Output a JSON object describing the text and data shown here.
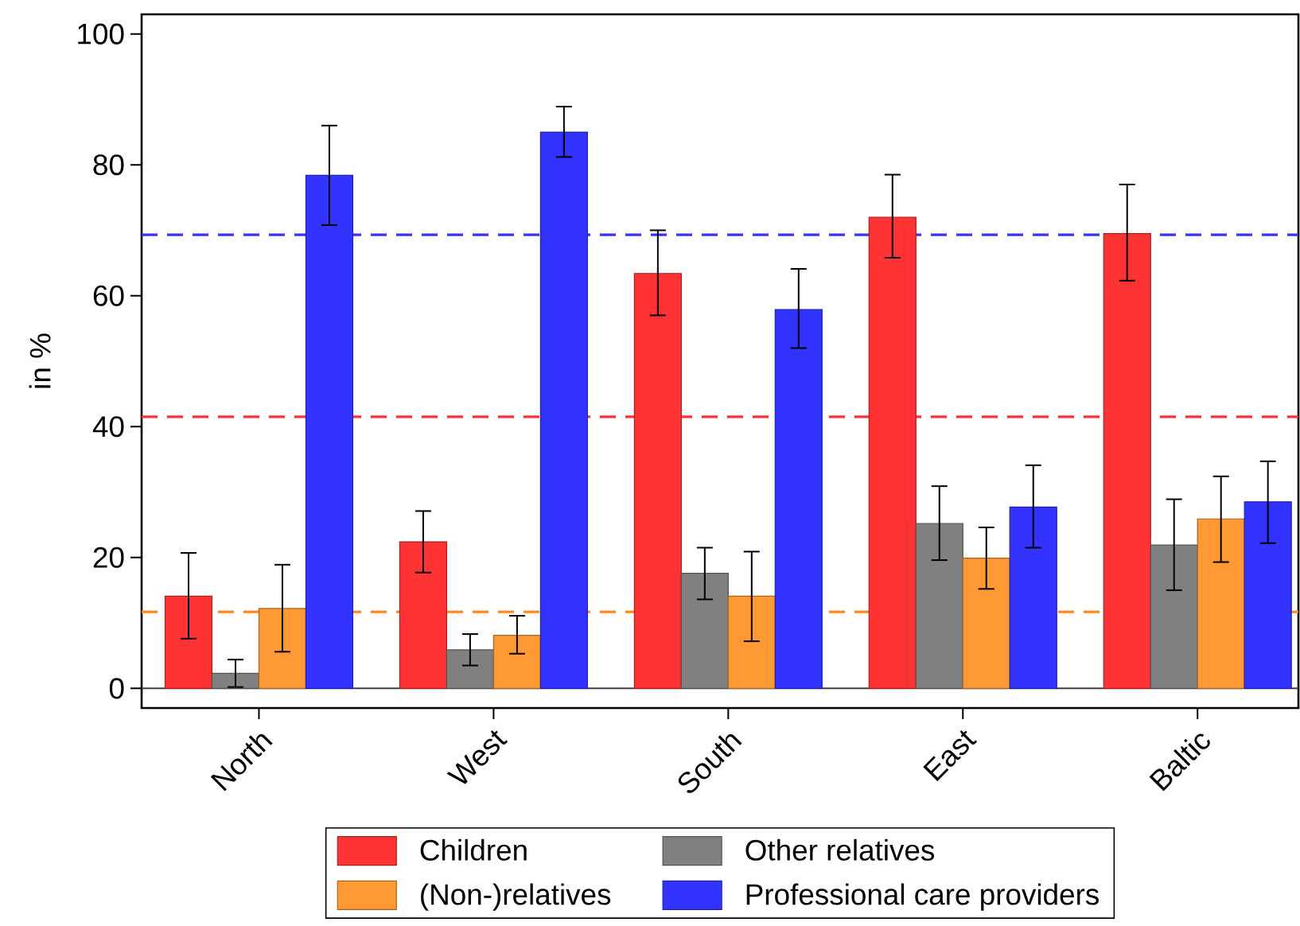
{
  "chart_data": {
    "type": "bar",
    "ylabel": "in %",
    "categories": [
      "North",
      "West",
      "South",
      "East",
      "Baltic"
    ],
    "series": [
      {
        "name": "Children",
        "color": "#ff3333",
        "values": [
          14.1,
          22.4,
          63.4,
          72.0,
          69.5
        ],
        "errors": [
          [
            7.6,
            20.7
          ],
          [
            17.7,
            27.1
          ],
          [
            57.0,
            70.0
          ],
          [
            65.8,
            78.5
          ],
          [
            62.3,
            77.0
          ]
        ]
      },
      {
        "name": "Other relatives",
        "color": "#808080",
        "values": [
          2.3,
          5.9,
          17.6,
          25.2,
          21.9
        ],
        "errors": [
          [
            0.2,
            4.4
          ],
          [
            3.5,
            8.3
          ],
          [
            13.6,
            21.5
          ],
          [
            19.6,
            30.9
          ],
          [
            15.0,
            28.9
          ]
        ]
      },
      {
        "name": "(Non-)relatives",
        "color": "#ff9933",
        "values": [
          12.2,
          8.1,
          14.1,
          19.9,
          25.9
        ],
        "errors": [
          [
            5.6,
            18.9
          ],
          [
            5.3,
            11.1
          ],
          [
            7.2,
            20.9
          ],
          [
            15.2,
            24.6
          ],
          [
            19.3,
            32.4
          ]
        ]
      },
      {
        "name": "Professional care providers",
        "color": "#3333ff",
        "values": [
          78.4,
          85.0,
          57.9,
          27.7,
          28.5
        ],
        "errors": [
          [
            70.8,
            86.0
          ],
          [
            81.2,
            88.9
          ],
          [
            52.0,
            64.1
          ],
          [
            21.5,
            34.1
          ],
          [
            22.2,
            34.7
          ]
        ]
      }
    ],
    "ylim": [
      -3,
      103
    ],
    "yticks": [
      0,
      20,
      40,
      60,
      80,
      100
    ],
    "ref_lines": [
      {
        "axis": "y",
        "value": 69.3,
        "color": "#3333ff",
        "line_style": "dashed"
      },
      {
        "axis": "y",
        "value": 41.5,
        "color": "#ff3333",
        "line_style": "dashed"
      },
      {
        "axis": "y",
        "value": 11.7,
        "color": "#ff8c1a",
        "line_style": "dashed"
      },
      {
        "axis": "y",
        "value": 0,
        "color": "#404040",
        "line_style": "solid"
      }
    ],
    "legend": "bottom"
  }
}
